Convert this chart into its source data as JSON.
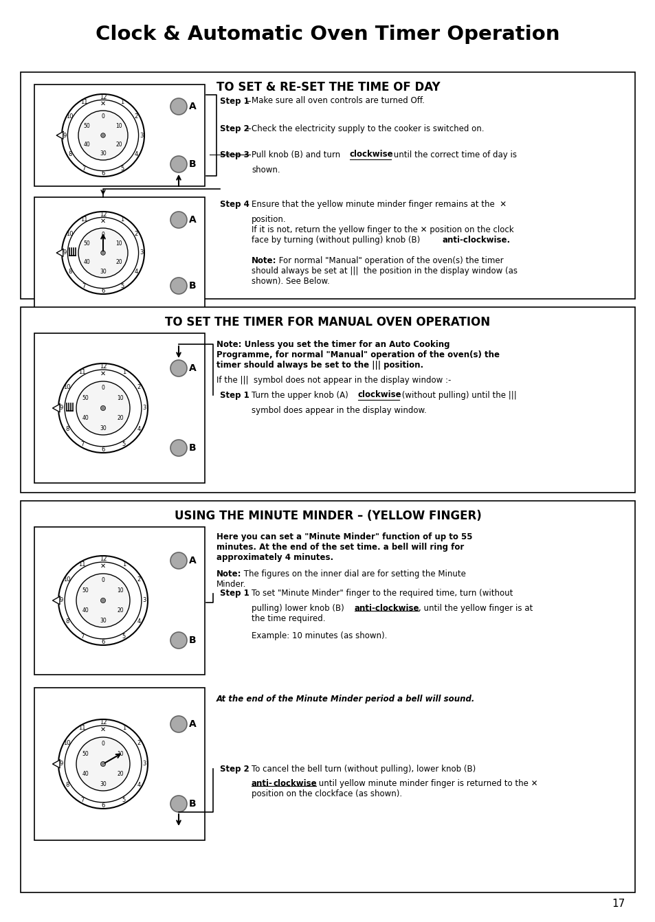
{
  "title": "Clock & Automatic Oven Timer Operation",
  "bg_color": "#ffffff",
  "section1_heading": "TO SET & RE-SET THE TIME OF DAY",
  "section2_heading": "TO SET THE TIMER FOR MANUAL OVEN OPERATION",
  "section3_heading": "USING THE MINUTE MINDER – (YELLOW FINGER)",
  "page_number": "17"
}
